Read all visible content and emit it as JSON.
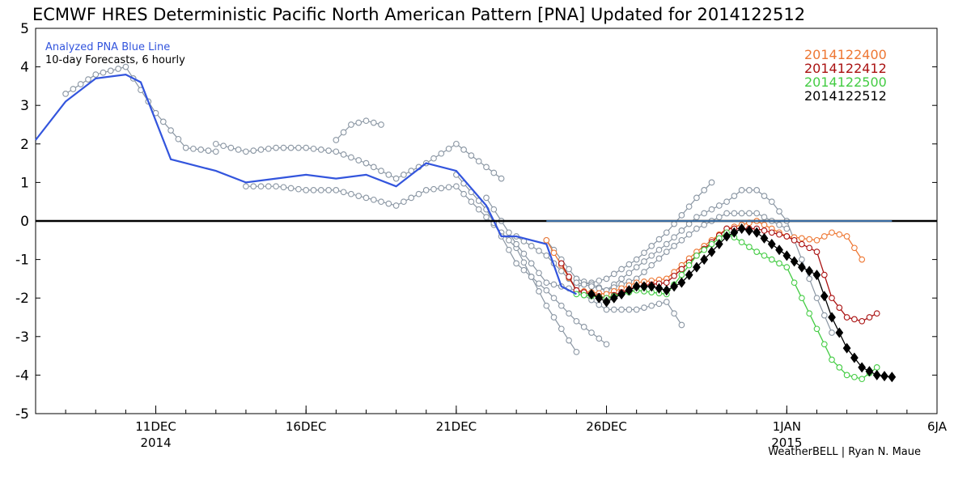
{
  "chart_data": {
    "type": "line",
    "title": "ECMWF HRES Deterministic Pacific North American Pattern [PNA] Updated for 2014122512",
    "xlabel": "",
    "ylabel": "",
    "ylim": [
      -5,
      5
    ],
    "xlim": [
      "2014-12-07",
      "2015-01-06"
    ],
    "x_ticks": [
      {
        "date": "2014-12-11",
        "label": "11DEC",
        "sublabel": "2014"
      },
      {
        "date": "2014-12-16",
        "label": "16DEC",
        "sublabel": ""
      },
      {
        "date": "2014-12-21",
        "label": "21DEC",
        "sublabel": ""
      },
      {
        "date": "2014-12-26",
        "label": "26DEC",
        "sublabel": ""
      },
      {
        "date": "2015-01-01",
        "label": "1JAN",
        "sublabel": "2015"
      },
      {
        "date": "2015-01-06",
        "label": "6JA",
        "sublabel": ""
      }
    ],
    "y_ticks": [
      5,
      4,
      3,
      2,
      1,
      0,
      -1,
      -2,
      -3,
      -4,
      -5
    ],
    "annotations": [
      "Analyzed PNA Blue Line",
      "10-day Forecasts, 6 hourly"
    ],
    "credit": "WeatherBELL | Ryan N. Maue",
    "grid": false,
    "legend_position": "top-right",
    "analyzed": {
      "color": "#3355dd",
      "points": [
        [
          "2014-12-07",
          2.1
        ],
        [
          "2014-12-08",
          3.1
        ],
        [
          "2014-12-09",
          3.7
        ],
        [
          "2014-12-10",
          3.8
        ],
        [
          "2014-12-10 12",
          3.6
        ],
        [
          "2014-12-11",
          2.6
        ],
        [
          "2014-12-11 12",
          1.6
        ],
        [
          "2014-12-12",
          1.5
        ],
        [
          "2014-12-13",
          1.3
        ],
        [
          "2014-12-14",
          1.0
        ],
        [
          "2014-12-15",
          1.1
        ],
        [
          "2014-12-16",
          1.2
        ],
        [
          "2014-12-17",
          1.1
        ],
        [
          "2014-12-18",
          1.2
        ],
        [
          "2014-12-19",
          0.9
        ],
        [
          "2014-12-20",
          1.5
        ],
        [
          "2014-12-21",
          1.3
        ],
        [
          "2014-12-22",
          0.4
        ],
        [
          "2014-12-22 12",
          -0.4
        ],
        [
          "2014-12-23",
          -0.4
        ],
        [
          "2014-12-24",
          -0.6
        ],
        [
          "2014-12-24 12",
          -1.7
        ],
        [
          "2014-12-25",
          -1.9
        ]
      ]
    },
    "series": [
      {
        "name": "2014122400",
        "color": "#ee7733",
        "points": [
          [
            "2014-12-24",
            -0.5
          ],
          [
            "2014-12-25",
            -1.8
          ],
          [
            "2014-12-26",
            -1.9
          ],
          [
            "2014-12-27",
            -1.6
          ],
          [
            "2014-12-28",
            -1.5
          ],
          [
            "2014-12-29",
            -0.8
          ],
          [
            "2014-12-30",
            -0.2
          ],
          [
            "2014-12-31",
            0.0
          ],
          [
            "2015-01-01",
            -0.4
          ],
          [
            "2015-01-02",
            -0.5
          ],
          [
            "2015-01-02 12",
            -0.3
          ],
          [
            "2015-01-03",
            -0.4
          ],
          [
            "2015-01-03 12",
            -1.0
          ]
        ]
      },
      {
        "name": "2014122412",
        "color": "#aa1111",
        "points": [
          [
            "2014-12-24 12",
            -1.1
          ],
          [
            "2014-12-25",
            -1.8
          ],
          [
            "2014-12-26",
            -2.0
          ],
          [
            "2014-12-27",
            -1.7
          ],
          [
            "2014-12-28",
            -1.6
          ],
          [
            "2014-12-29",
            -0.9
          ],
          [
            "2014-12-30",
            -0.2
          ],
          [
            "2014-12-31",
            -0.2
          ],
          [
            "2015-01-01",
            -0.4
          ],
          [
            "2015-01-01 12",
            -0.6
          ],
          [
            "2015-01-02",
            -0.8
          ],
          [
            "2015-01-02 12",
            -2.0
          ],
          [
            "2015-01-03",
            -2.5
          ],
          [
            "2015-01-03 12",
            -2.6
          ],
          [
            "2015-01-04",
            -2.4
          ]
        ]
      },
      {
        "name": "2014122500",
        "color": "#44cc44",
        "points": [
          [
            "2014-12-25",
            -1.9
          ],
          [
            "2014-12-26",
            -2.0
          ],
          [
            "2014-12-27",
            -1.8
          ],
          [
            "2014-12-28",
            -1.9
          ],
          [
            "2014-12-29",
            -0.9
          ],
          [
            "2014-12-30",
            -0.3
          ],
          [
            "2014-12-31",
            -0.8
          ],
          [
            "2015-01-01",
            -1.2
          ],
          [
            "2015-01-01 12",
            -2.0
          ],
          [
            "2015-01-02",
            -2.8
          ],
          [
            "2015-01-02 12",
            -3.6
          ],
          [
            "2015-01-03",
            -4.0
          ],
          [
            "2015-01-03 12",
            -4.1
          ],
          [
            "2015-01-04",
            -3.8
          ]
        ]
      },
      {
        "name": "2014122512",
        "color": "#000000",
        "points": [
          [
            "2014-12-25 12",
            -1.9
          ],
          [
            "2014-12-26",
            -2.1
          ],
          [
            "2014-12-26 12",
            -1.9
          ],
          [
            "2014-12-27",
            -1.7
          ],
          [
            "2014-12-27 12",
            -1.7
          ],
          [
            "2014-12-28",
            -1.8
          ],
          [
            "2014-12-28 12",
            -1.6
          ],
          [
            "2014-12-29",
            -1.2
          ],
          [
            "2014-12-29 12",
            -0.8
          ],
          [
            "2014-12-30",
            -0.4
          ],
          [
            "2014-12-30 12",
            -0.2
          ],
          [
            "2014-12-31",
            -0.3
          ],
          [
            "2014-12-31 12",
            -0.6
          ],
          [
            "2015-01-01",
            -0.9
          ],
          [
            "2015-01-01 12",
            -1.2
          ],
          [
            "2015-01-02",
            -1.4
          ],
          [
            "2015-01-02 12",
            -2.5
          ],
          [
            "2015-01-03",
            -3.3
          ],
          [
            "2015-01-03 12",
            -3.8
          ],
          [
            "2015-01-04",
            -4.0
          ],
          [
            "2015-01-04 12",
            -4.05
          ]
        ]
      }
    ],
    "ensemble_color": "#8a96a3",
    "past_forecasts": [
      [
        [
          "2014-12-17",
          2.1
        ],
        [
          "2014-12-17 12",
          2.5
        ],
        [
          "2014-12-18",
          2.6
        ],
        [
          "2014-12-18 12",
          2.5
        ]
      ],
      [
        [
          "2014-12-08",
          3.3
        ],
        [
          "2014-12-09",
          3.8
        ],
        [
          "2014-12-10",
          4.0
        ],
        [
          "2014-12-11",
          2.8
        ],
        [
          "2014-12-12",
          1.9
        ],
        [
          "2014-12-13",
          1.8
        ]
      ],
      [
        [
          "2014-12-13",
          2.0
        ],
        [
          "2014-12-14",
          1.8
        ],
        [
          "2014-12-15",
          1.9
        ],
        [
          "2014-12-16",
          1.9
        ],
        [
          "2014-12-17",
          1.8
        ],
        [
          "2014-12-18",
          1.5
        ],
        [
          "2014-12-19",
          1.1
        ],
        [
          "2014-12-20",
          1.5
        ],
        [
          "2014-12-21",
          2.0
        ],
        [
          "2014-12-22",
          1.4
        ],
        [
          "2014-12-22 12",
          1.1
        ]
      ],
      [
        [
          "2014-12-14",
          0.9
        ],
        [
          "2014-12-15",
          0.9
        ],
        [
          "2014-12-16",
          0.8
        ],
        [
          "2014-12-17",
          0.8
        ],
        [
          "2014-12-18",
          0.6
        ],
        [
          "2014-12-19",
          0.4
        ],
        [
          "2014-12-20",
          0.8
        ],
        [
          "2014-12-21",
          0.9
        ],
        [
          "2014-12-22",
          0.1
        ],
        [
          "2014-12-23",
          -0.7
        ],
        [
          "2014-12-24",
          -2.2
        ],
        [
          "2014-12-25",
          -3.4
        ]
      ],
      [
        [
          "2014-12-21",
          1.2
        ],
        [
          "2014-12-22",
          0.3
        ],
        [
          "2014-12-23",
          -1.1
        ],
        [
          "2014-12-24",
          -1.8
        ],
        [
          "2014-12-25",
          -2.6
        ],
        [
          "2014-12-26",
          -3.2
        ]
      ],
      [
        [
          "2014-12-22",
          0.6
        ],
        [
          "2014-12-23",
          -0.6
        ],
        [
          "2014-12-24",
          -1.6
        ],
        [
          "2014-12-25",
          -1.8
        ],
        [
          "2014-12-26",
          -2.3
        ],
        [
          "2014-12-27",
          -2.3
        ],
        [
          "2014-12-28",
          -2.1
        ],
        [
          "2014-12-28 12",
          -2.7
        ]
      ],
      [
        [
          "2014-12-23",
          -0.4
        ],
        [
          "2014-12-24",
          -0.9
        ],
        [
          "2014-12-25",
          -1.7
        ],
        [
          "2014-12-26",
          -1.5
        ],
        [
          "2014-12-27",
          -1.0
        ],
        [
          "2014-12-28",
          -0.3
        ],
        [
          "2014-12-29",
          0.6
        ],
        [
          "2014-12-29 12",
          1.0
        ]
      ],
      [
        [
          "2014-12-24",
          -0.5
        ],
        [
          "2014-12-25",
          -1.5
        ],
        [
          "2014-12-26",
          -1.8
        ],
        [
          "2014-12-27",
          -1.2
        ],
        [
          "2014-12-28",
          -0.6
        ],
        [
          "2014-12-29",
          0.1
        ],
        [
          "2014-12-30",
          0.5
        ],
        [
          "2014-12-30 12",
          0.8
        ],
        [
          "2014-12-31",
          0.8
        ],
        [
          "2014-12-31 12",
          0.5
        ],
        [
          "2015-01-01",
          0.0
        ],
        [
          "2015-01-01 12",
          -1.0
        ],
        [
          "2015-01-02",
          -2.0
        ],
        [
          "2015-01-02 12",
          -2.9
        ]
      ],
      [
        [
          "2014-12-25",
          -1.6
        ],
        [
          "2014-12-26",
          -1.8
        ],
        [
          "2014-12-27",
          -1.5
        ],
        [
          "2014-12-28",
          -0.8
        ],
        [
          "2014-12-29",
          -0.2
        ],
        [
          "2014-12-30",
          0.2
        ],
        [
          "2014-12-31",
          0.2
        ],
        [
          "2015-01-01",
          -0.2
        ]
      ]
    ]
  }
}
